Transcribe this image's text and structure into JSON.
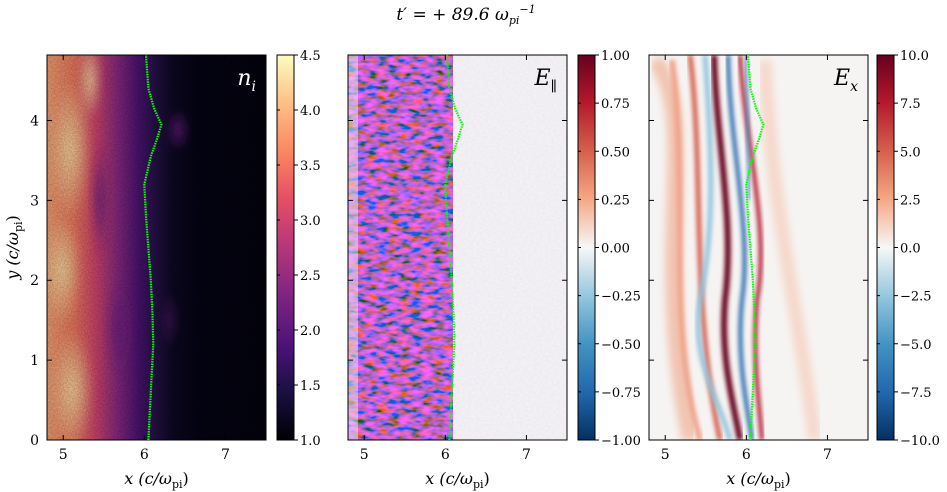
{
  "title": "t′ = + 89.6 ω_pi⁻¹",
  "title_parts": {
    "lhs": "t′ = + 89.6 ω",
    "sub": "pi",
    "sup": "−1"
  },
  "chart_data": [
    {
      "type": "heatmap",
      "panel_label": "n_i",
      "xlabel": "x (c/ω_pi)",
      "ylabel": "y (c/ω_pi)",
      "xlim": [
        4.8,
        7.5
      ],
      "ylim": [
        0,
        4.82
      ],
      "xticks": [
        "5",
        "6",
        "7"
      ],
      "yticks": [
        "0",
        "1",
        "2",
        "3",
        "4"
      ],
      "colormap": "magma",
      "clim": [
        1.0,
        4.5
      ],
      "colorbar_ticks": [
        "1.0",
        "1.5",
        "2.0",
        "2.5",
        "3.0",
        "3.5",
        "4.0",
        "4.5"
      ],
      "front_color": "#00ff00"
    },
    {
      "type": "heatmap",
      "panel_label": "E_∥",
      "xlabel": "x (c/ω_pi)",
      "ylabel": "",
      "xlim": [
        4.8,
        7.5
      ],
      "ylim": [
        0,
        4.82
      ],
      "xticks": [
        "5",
        "6",
        "7"
      ],
      "colormap": "RdBu_r",
      "clim": [
        -1.0,
        1.0
      ],
      "colorbar_ticks": [
        "−1.00",
        "−0.75",
        "−0.50",
        "−0.25",
        "0.00",
        "0.25",
        "0.50",
        "0.75",
        "1.00"
      ],
      "front_color": "#00ff00"
    },
    {
      "type": "heatmap",
      "panel_label": "E_x",
      "xlabel": "x (c/ω_pi)",
      "ylabel": "",
      "xlim": [
        4.8,
        7.5
      ],
      "ylim": [
        0,
        4.82
      ],
      "xticks": [
        "5",
        "6",
        "7"
      ],
      "colormap": "RdBu_r",
      "clim": [
        -10.0,
        10.0
      ],
      "colorbar_ticks": [
        "−10.0",
        "−7.5",
        "−5.0",
        "−2.5",
        "0.0",
        "2.5",
        "5.0",
        "7.5",
        "10.0"
      ],
      "front_color": "#00ff00"
    }
  ],
  "front_curve": {
    "y": [
      0,
      0.4,
      0.8,
      1.2,
      1.6,
      2.0,
      2.4,
      2.8,
      3.2,
      3.55,
      3.75,
      3.95,
      4.15,
      4.4,
      4.82
    ],
    "x": [
      6.05,
      6.07,
      6.09,
      6.11,
      6.1,
      6.08,
      6.05,
      6.02,
      6.0,
      6.08,
      6.15,
      6.21,
      6.12,
      6.05,
      6.02
    ]
  },
  "colors": {
    "front": "#00ff00",
    "axis": "#000000",
    "background": "#ffffff"
  }
}
